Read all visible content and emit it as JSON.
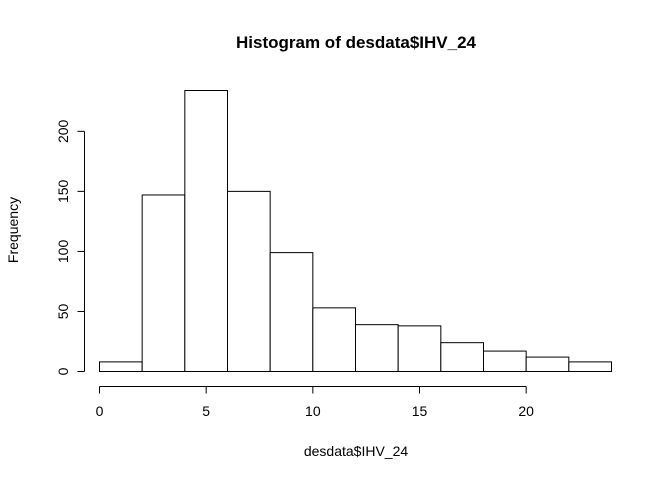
{
  "chart_data": {
    "type": "bar",
    "subtype": "histogram",
    "title": "Histogram of desdata$IHV_24",
    "xlabel": "desdata$IHV_24",
    "ylabel": "Frequency",
    "bins": [
      {
        "start": 0,
        "end": 2,
        "count": 8
      },
      {
        "start": 2,
        "end": 4,
        "count": 147
      },
      {
        "start": 4,
        "end": 6,
        "count": 234
      },
      {
        "start": 6,
        "end": 8,
        "count": 150
      },
      {
        "start": 8,
        "end": 10,
        "count": 99
      },
      {
        "start": 10,
        "end": 12,
        "count": 53
      },
      {
        "start": 12,
        "end": 14,
        "count": 39
      },
      {
        "start": 14,
        "end": 16,
        "count": 38
      },
      {
        "start": 16,
        "end": 18,
        "count": 24
      },
      {
        "start": 18,
        "end": 20,
        "count": 17
      },
      {
        "start": 20,
        "end": 22,
        "count": 12
      },
      {
        "start": 22,
        "end": 24,
        "count": 8
      }
    ],
    "xlim": [
      0,
      24
    ],
    "ylim": [
      0,
      234
    ],
    "x_ticks": [
      "0",
      "5",
      "10",
      "15",
      "20"
    ],
    "y_ticks": [
      "0",
      "50",
      "100",
      "150",
      "200"
    ],
    "grid": false,
    "legend": "none",
    "colors": {
      "bar_fill": "#ffffff",
      "bar_stroke": "#000000"
    }
  }
}
